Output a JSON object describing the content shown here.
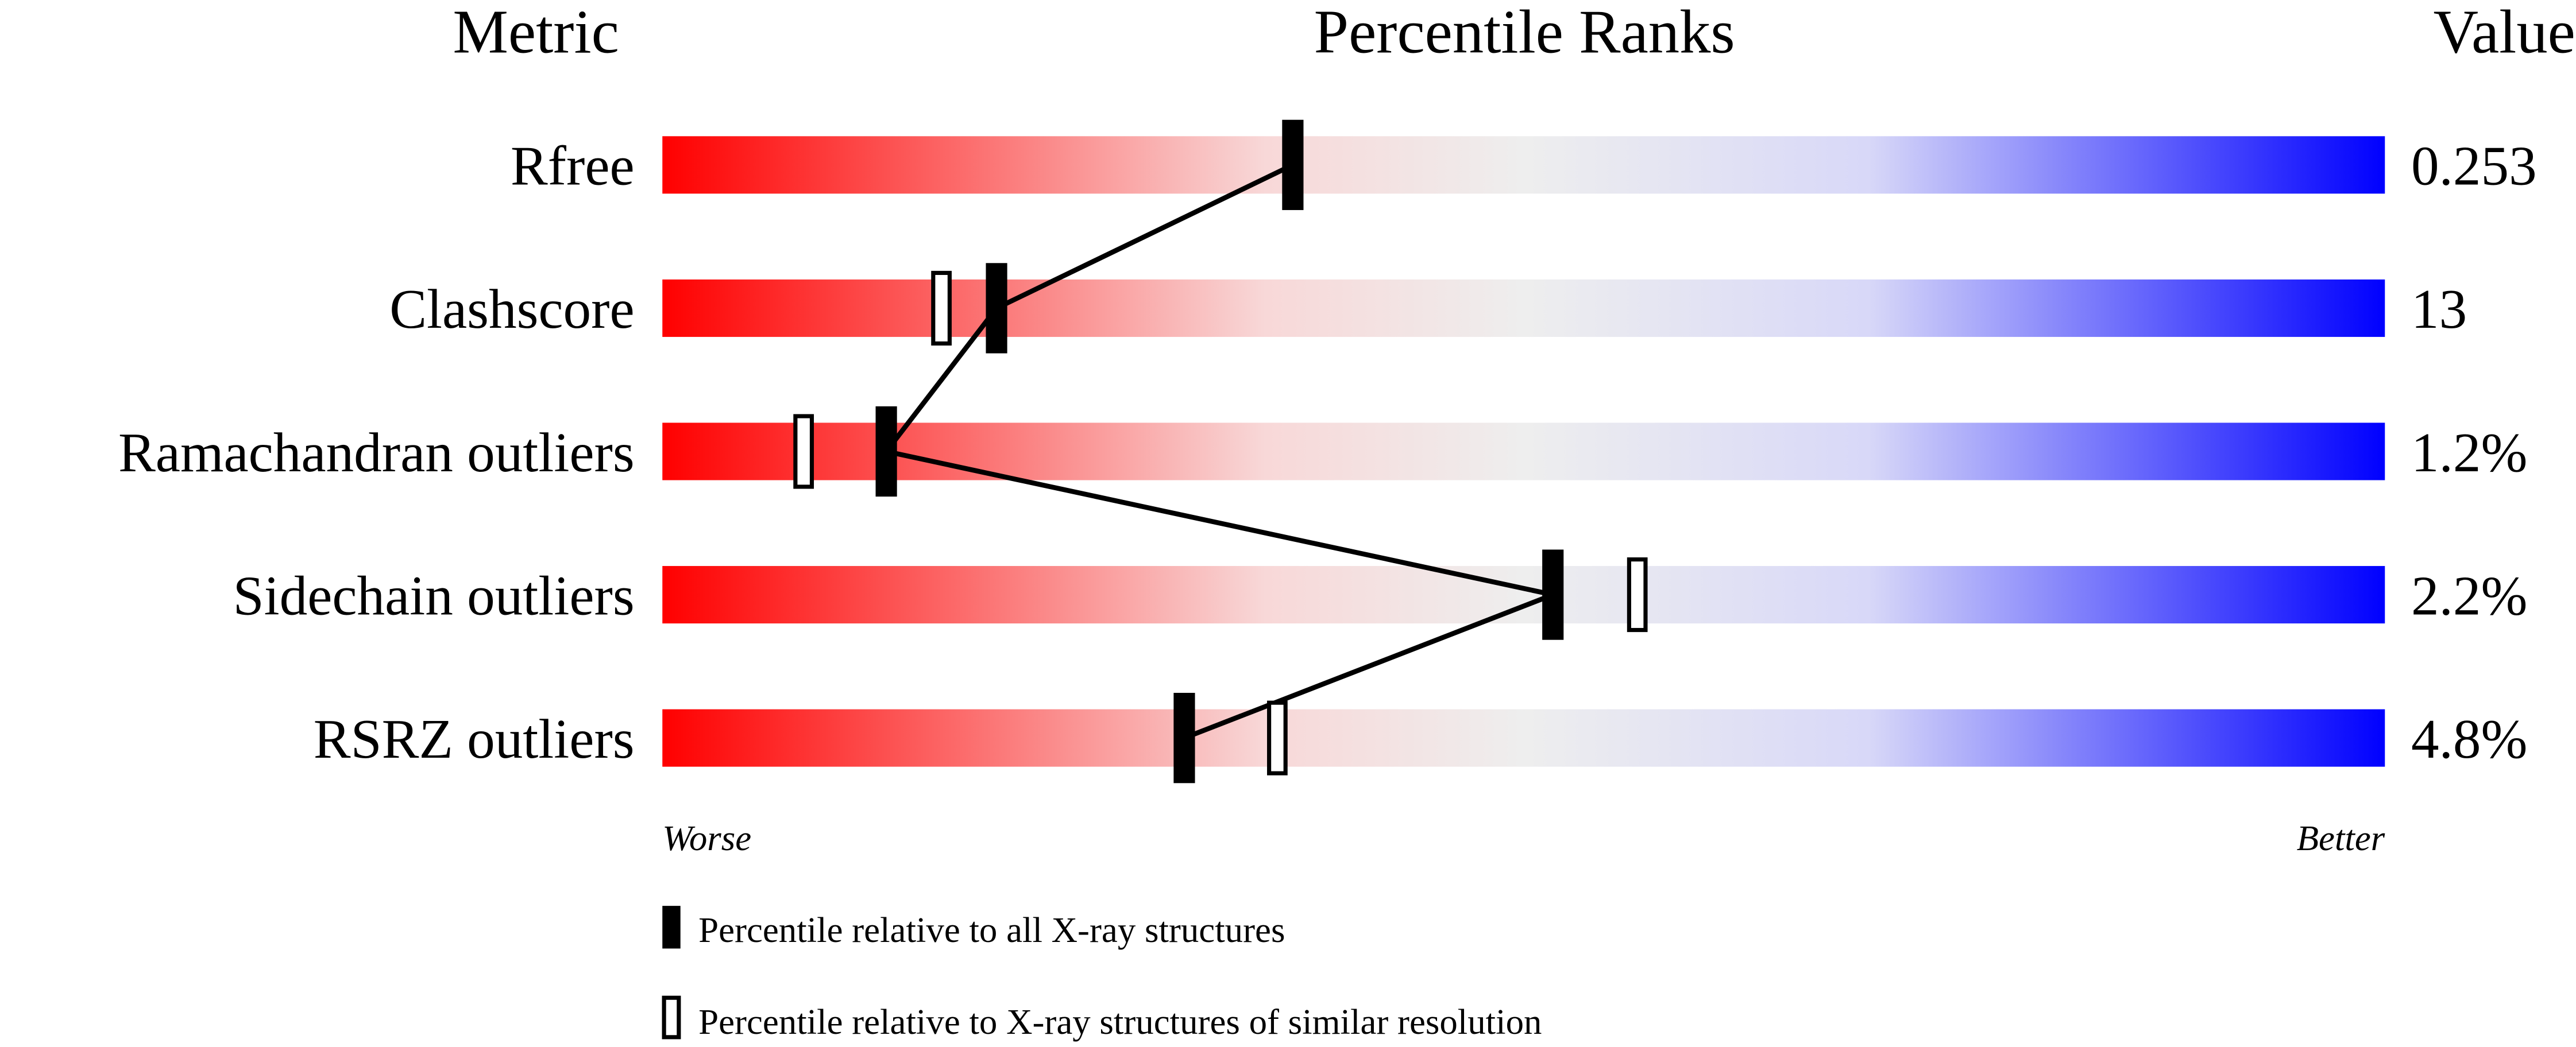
{
  "chart_data": {
    "type": "percentile-bar",
    "headers": {
      "metric": "Metric",
      "ranks": "Percentile Ranks",
      "value": "Value"
    },
    "xlim": [
      0,
      100
    ],
    "axis_labels": {
      "left": "Worse",
      "right": "Better"
    },
    "gradient_colors": [
      "#ff0000",
      "#f8d8d8",
      "#eeeeee",
      "#d8d8f8",
      "#0000ff"
    ],
    "metrics": [
      {
        "name": "Rfree",
        "value": "0.253",
        "percentile_all": 36.6,
        "percentile_similar": null
      },
      {
        "name": "Clashscore",
        "value": "13",
        "percentile_all": 19.4,
        "percentile_similar": 16.2
      },
      {
        "name": "Ramachandran outliers",
        "value": "1.2%",
        "percentile_all": 13.0,
        "percentile_similar": 8.2
      },
      {
        "name": "Sidechain outliers",
        "value": "2.2%",
        "percentile_all": 51.7,
        "percentile_similar": 56.6
      },
      {
        "name": "RSRZ outliers",
        "value": "4.8%",
        "percentile_all": 30.3,
        "percentile_similar": 35.7
      }
    ],
    "legend": [
      {
        "marker": "filled",
        "label": "Percentile relative to all X-ray structures"
      },
      {
        "marker": "open",
        "label": "Percentile relative to X-ray structures of similar resolution"
      }
    ]
  }
}
